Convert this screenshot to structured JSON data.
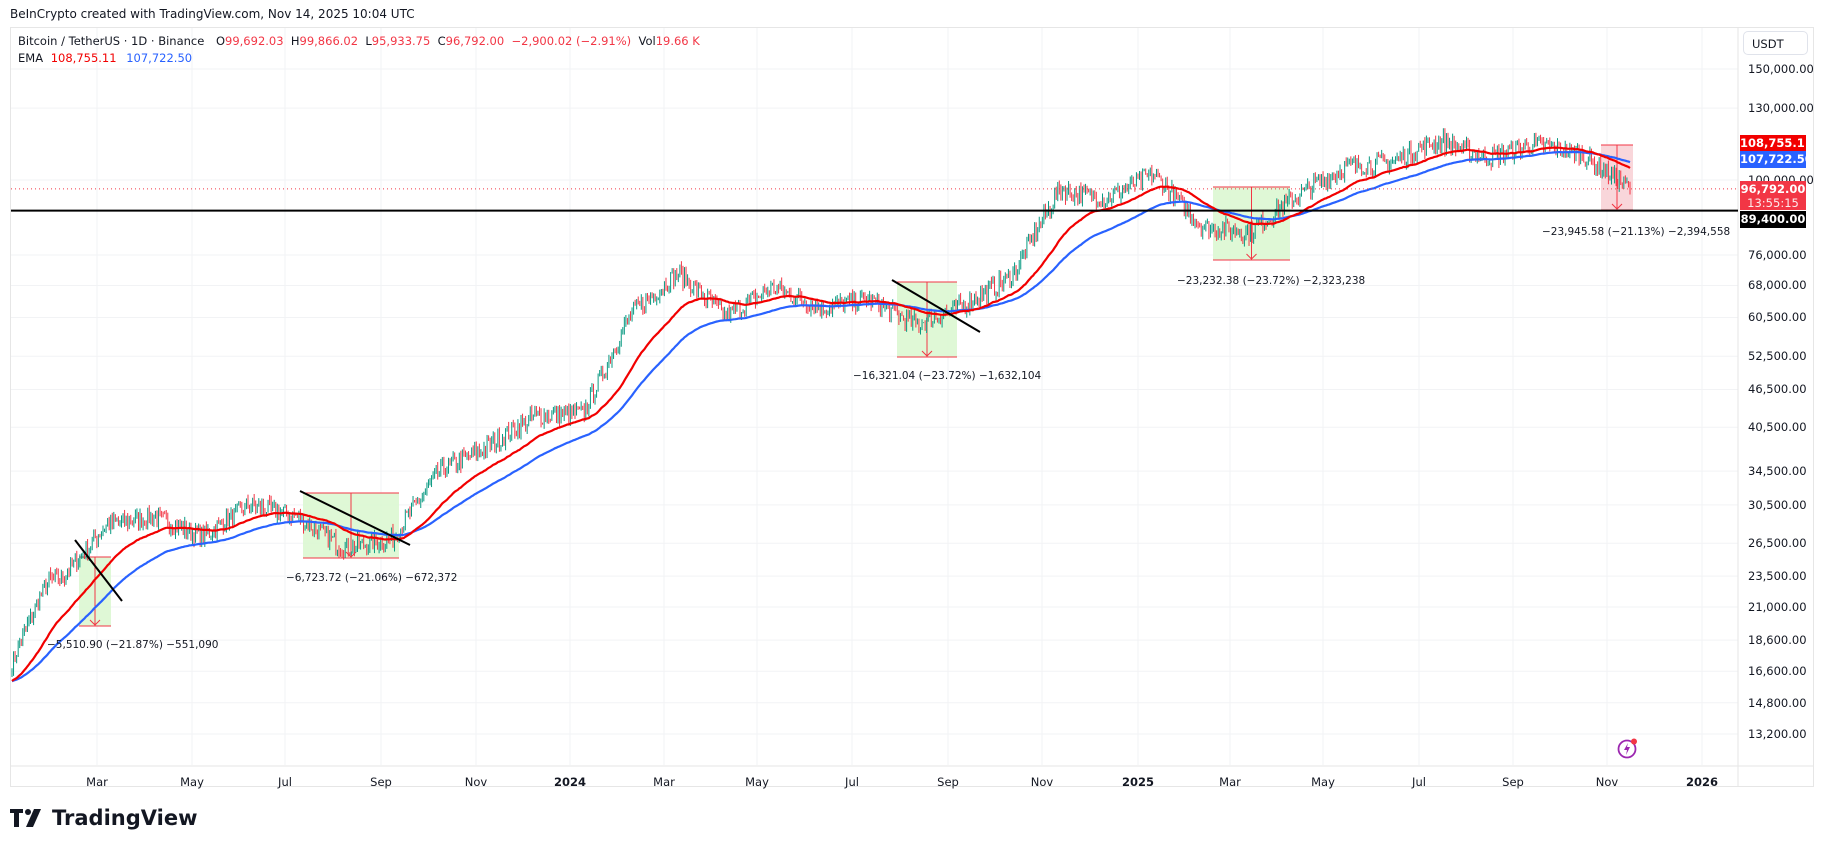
{
  "credit": "BeInCrypto created with TradingView.com, Nov 14, 2025 10:04 UTC",
  "legend": {
    "symbol": "Bitcoin / TetherUS · 1D · Binance",
    "open_label": "O",
    "open": "99,692.03",
    "high_label": "H",
    "high": "99,866.02",
    "low_label": "L",
    "low": "95,933.75",
    "close_label": "C",
    "close": "96,792.00",
    "change": "−2,900.02 (−2.91%)",
    "vol_label": "Vol",
    "vol": "19.66 K",
    "ema_label": "EMA",
    "ema_fast": "108,755.11",
    "ema_slow": "107,722.50"
  },
  "currency": "USDT",
  "badges": {
    "ema_fast": "108,755.11",
    "ema_slow": "107,722.50",
    "last_price": "96,792.00",
    "countdown": "13:55:15",
    "hline": "89,400.00"
  },
  "colors": {
    "up": "#089981",
    "down": "#f23645",
    "ema_fast": "#f20000",
    "ema_slow": "#2962ff",
    "hline": "#000000",
    "box_green": "#d9f7cf",
    "box_red": "#f8cfd3",
    "price_badge": "#f23645"
  },
  "annotations": [
    {
      "text": "−5,510.90 (−21.87%) −551,090"
    },
    {
      "text": "−6,723.72 (−21.06%) −672,372"
    },
    {
      "text": "−16,321.04 (−23.72%) −1,632,104"
    },
    {
      "text": "−23,232.38 (−23.72%) −2,323,238"
    },
    {
      "text": "−23,945.58 (−21.13%) −2,394,558"
    }
  ],
  "brand": "TradingView",
  "chart_data": {
    "type": "candlestick",
    "title": "Bitcoin / TetherUS · 1D · Binance",
    "scale": "log",
    "ylabel": "USDT",
    "y_ticks": [
      150000,
      130000,
      100000,
      76000,
      68000,
      60500,
      52500,
      46500,
      40500,
      34500,
      30500,
      26500,
      23500,
      21000,
      18600,
      16600,
      14800,
      13200
    ],
    "x_ticks": [
      "Mar",
      "May",
      "Jul",
      "Sep",
      "Nov",
      "2024",
      "Mar",
      "May",
      "Jul",
      "Sep",
      "Nov",
      "2025",
      "Mar",
      "May",
      "Jul",
      "Sep",
      "Nov",
      "2026"
    ],
    "approx_monthly_close": {
      "x": [
        "2023-01",
        "2023-02",
        "2023-03",
        "2023-04",
        "2023-05",
        "2023-06",
        "2023-07",
        "2023-08",
        "2023-09",
        "2023-10",
        "2023-11",
        "2023-12",
        "2024-01",
        "2024-02",
        "2024-03",
        "2024-04",
        "2024-05",
        "2024-06",
        "2024-07",
        "2024-08",
        "2024-09",
        "2024-10",
        "2024-11",
        "2024-12",
        "2025-01",
        "2025-02",
        "2025-03",
        "2025-04",
        "2025-05",
        "2025-06",
        "2025-07",
        "2025-08",
        "2025-09",
        "2025-10",
        "2025-11"
      ],
      "values": [
        23100,
        23100,
        28400,
        29200,
        27200,
        30500,
        29200,
        26000,
        27000,
        34600,
        37700,
        42300,
        42600,
        61100,
        71300,
        60700,
        67500,
        62700,
        64600,
        59000,
        63300,
        70200,
        96400,
        93400,
        102400,
        84300,
        82500,
        94200,
        104600,
        107100,
        115700,
        108200,
        114000,
        109600,
        96792
      ]
    },
    "ema_fast_last": 108755.11,
    "ema_slow_last": 107722.5,
    "last_price": 96792.0,
    "horizontal_line": 89400.0,
    "drawdowns": [
      {
        "period": "Feb–Mar 2023",
        "change": -5510.9,
        "pct": -21.87
      },
      {
        "period": "Jul–Sep 2023",
        "change": -6723.72,
        "pct": -21.06
      },
      {
        "period": "Jul–Sep 2024",
        "change": -16321.04,
        "pct": -23.72
      },
      {
        "period": "Feb–Apr 2025",
        "change": -23232.38,
        "pct": -23.72
      },
      {
        "period": "Oct–Nov 2025",
        "change": -23945.58,
        "pct": -21.13
      }
    ]
  }
}
